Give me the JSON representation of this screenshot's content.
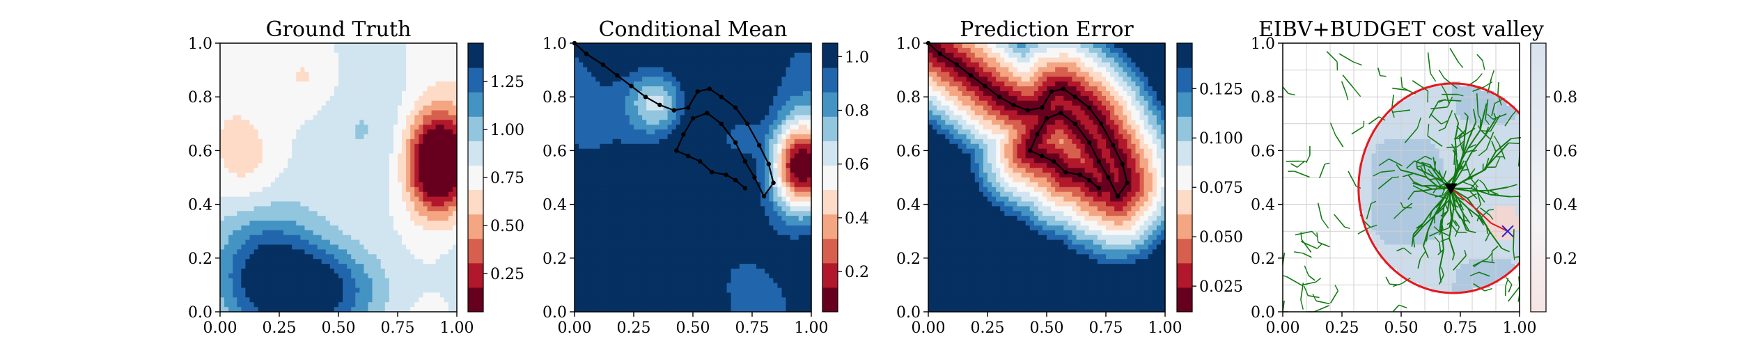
{
  "figure": {
    "panels": 4
  },
  "chart_data": [
    {
      "type": "heatmap",
      "title": "Ground Truth",
      "xlim": [
        0,
        1
      ],
      "ylim": [
        0,
        1
      ],
      "xticks": [
        "0.00",
        "0.25",
        "0.50",
        "0.75",
        "1.00"
      ],
      "yticks": [
        "0.0",
        "0.2",
        "0.4",
        "0.6",
        "0.8",
        "1.0"
      ],
      "colorbar": {
        "cmap": "RdBu",
        "range": [
          0.05,
          1.45
        ],
        "ticks": [
          "0.25",
          "0.50",
          "0.75",
          "1.00",
          "1.25"
        ],
        "tick_values": [
          0.25,
          0.5,
          0.75,
          1.0,
          1.25
        ]
      },
      "blobs": [
        {
          "x": 0.92,
          "y": 0.55,
          "sx": 0.09,
          "sy": 0.13,
          "amp": -1.1
        },
        {
          "x": 0.4,
          "y": 0.08,
          "sx": 0.22,
          "sy": 0.12,
          "amp": 0.55
        },
        {
          "x": 0.2,
          "y": 0.2,
          "sx": 0.15,
          "sy": 0.15,
          "amp": 0.3
        },
        {
          "x": 0.38,
          "y": 0.88,
          "sx": 0.12,
          "sy": 0.12,
          "amp": -0.25
        },
        {
          "x": 0.1,
          "y": 0.55,
          "sx": 0.1,
          "sy": 0.12,
          "amp": -0.15
        }
      ],
      "base": 0.85
    },
    {
      "type": "heatmap",
      "title": "Conditional Mean",
      "xlim": [
        0,
        1
      ],
      "ylim": [
        0,
        1
      ],
      "xticks": [
        "0.00",
        "0.25",
        "0.50",
        "0.75",
        "1.00"
      ],
      "yticks": [
        "0.0",
        "0.2",
        "0.4",
        "0.6",
        "0.8",
        "1.0"
      ],
      "colorbar": {
        "cmap": "RdBu",
        "range": [
          0.05,
          1.05
        ],
        "ticks": [
          "0.2",
          "0.4",
          "0.6",
          "0.8",
          "1.0"
        ],
        "tick_values": [
          0.2,
          0.4,
          0.6,
          0.8,
          1.0
        ]
      },
      "blobs": [
        {
          "x": 0.96,
          "y": 0.54,
          "sx": 0.09,
          "sy": 0.12,
          "amp": -1.0
        },
        {
          "x": 0.35,
          "y": 0.78,
          "sx": 0.09,
          "sy": 0.09,
          "amp": -0.45
        },
        {
          "x": 0.68,
          "y": 0.65,
          "sx": 0.07,
          "sy": 0.07,
          "amp": -0.2
        }
      ],
      "base": 1.05,
      "path": [
        [
          0.0,
          1.0
        ],
        [
          0.05,
          0.96
        ],
        [
          0.12,
          0.92
        ],
        [
          0.18,
          0.88
        ],
        [
          0.24,
          0.84
        ],
        [
          0.3,
          0.8
        ],
        [
          0.36,
          0.77
        ],
        [
          0.42,
          0.75
        ],
        [
          0.48,
          0.76
        ],
        [
          0.52,
          0.82
        ],
        [
          0.57,
          0.83
        ],
        [
          0.62,
          0.8
        ],
        [
          0.68,
          0.76
        ],
        [
          0.73,
          0.7
        ],
        [
          0.78,
          0.62
        ],
        [
          0.82,
          0.55
        ],
        [
          0.84,
          0.48
        ],
        [
          0.8,
          0.43
        ],
        [
          0.76,
          0.5
        ],
        [
          0.72,
          0.56
        ],
        [
          0.68,
          0.63
        ],
        [
          0.62,
          0.7
        ],
        [
          0.56,
          0.74
        ],
        [
          0.5,
          0.72
        ],
        [
          0.46,
          0.66
        ],
        [
          0.43,
          0.6
        ],
        [
          0.48,
          0.58
        ],
        [
          0.53,
          0.56
        ],
        [
          0.58,
          0.52
        ],
        [
          0.64,
          0.51
        ],
        [
          0.68,
          0.49
        ],
        [
          0.72,
          0.46
        ]
      ]
    },
    {
      "type": "heatmap",
      "title": "Prediction Error",
      "xlim": [
        0,
        1
      ],
      "ylim": [
        0,
        1
      ],
      "xticks": [
        "0.00",
        "0.25",
        "0.50",
        "0.75",
        "1.00"
      ],
      "yticks": [
        "0.0",
        "0.2",
        "0.4",
        "0.6",
        "0.8",
        "1.0"
      ],
      "colorbar": {
        "cmap": "RdBu",
        "range": [
          0.012,
          0.148
        ],
        "ticks": [
          "0.025",
          "0.050",
          "0.075",
          "0.100",
          "0.125"
        ],
        "tick_values": [
          0.025,
          0.05,
          0.075,
          0.1,
          0.125
        ]
      },
      "base": 0.148,
      "path": [
        [
          0.0,
          1.0
        ],
        [
          0.05,
          0.96
        ],
        [
          0.12,
          0.92
        ],
        [
          0.18,
          0.88
        ],
        [
          0.24,
          0.84
        ],
        [
          0.3,
          0.8
        ],
        [
          0.36,
          0.77
        ],
        [
          0.42,
          0.75
        ],
        [
          0.48,
          0.76
        ],
        [
          0.52,
          0.82
        ],
        [
          0.57,
          0.83
        ],
        [
          0.62,
          0.8
        ],
        [
          0.68,
          0.76
        ],
        [
          0.73,
          0.7
        ],
        [
          0.78,
          0.62
        ],
        [
          0.82,
          0.55
        ],
        [
          0.84,
          0.48
        ],
        [
          0.8,
          0.43
        ],
        [
          0.76,
          0.5
        ],
        [
          0.72,
          0.56
        ],
        [
          0.68,
          0.63
        ],
        [
          0.62,
          0.7
        ],
        [
          0.56,
          0.74
        ],
        [
          0.5,
          0.72
        ],
        [
          0.46,
          0.66
        ],
        [
          0.43,
          0.6
        ],
        [
          0.48,
          0.58
        ],
        [
          0.53,
          0.56
        ],
        [
          0.58,
          0.52
        ],
        [
          0.64,
          0.51
        ],
        [
          0.68,
          0.49
        ],
        [
          0.72,
          0.46
        ]
      ]
    },
    {
      "type": "heatmap",
      "title": "EIBV+BUDGET cost valley",
      "xlim": [
        0,
        1
      ],
      "ylim": [
        0,
        1
      ],
      "xticks": [
        "0.00",
        "0.25",
        "0.50",
        "0.75",
        "1.00"
      ],
      "yticks": [
        "0.0",
        "0.2",
        "0.4",
        "0.6",
        "0.8",
        "1.0"
      ],
      "colorbar": {
        "cmap": "RdBu",
        "range": [
          0.0,
          1.0
        ],
        "ticks": [
          "0.2",
          "0.4",
          "0.6",
          "0.8"
        ],
        "tick_values": [
          0.2,
          0.4,
          0.6,
          0.8
        ]
      },
      "ellipse": {
        "cx": 0.72,
        "cy": 0.46,
        "rx": 0.4,
        "ry": 0.39,
        "color": "#e8161a"
      },
      "current_location": {
        "x": 0.71,
        "y": 0.46
      },
      "goal_location": {
        "x": 0.95,
        "y": 0.3
      },
      "tree_color": "#117a11"
    }
  ]
}
